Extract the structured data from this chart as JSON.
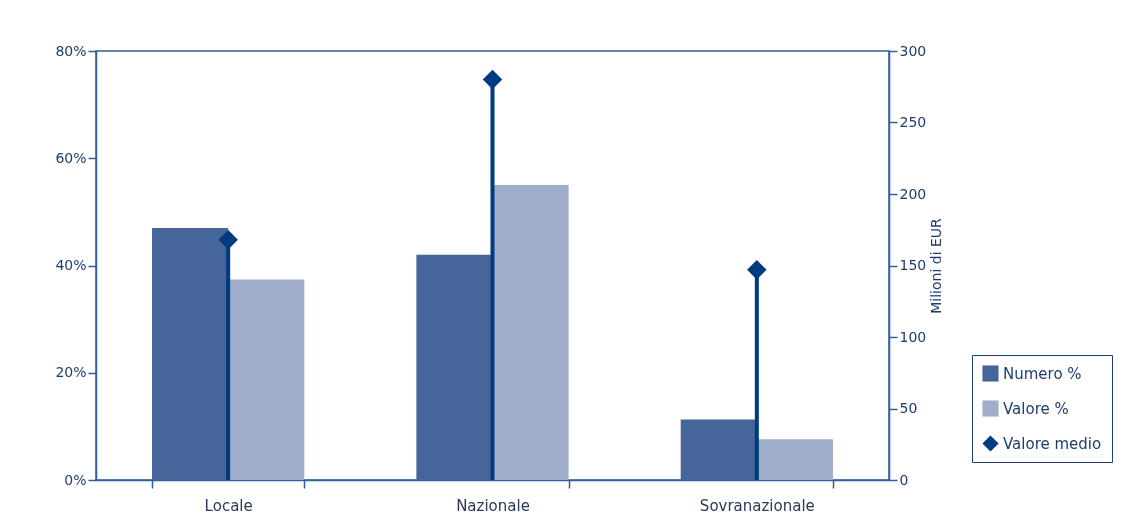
{
  "chart_data": {
    "type": "bar",
    "categories": [
      "Locale",
      "Nazionale",
      "Sovranazionale"
    ],
    "series": [
      {
        "name": "Numero %",
        "color": "#46659a",
        "values": [
          47,
          42,
          11.3
        ]
      },
      {
        "name": "Valore %",
        "color": "#a0aecb",
        "values": [
          37.4,
          55,
          7.6
        ]
      },
      {
        "name": "Valore medio",
        "type": "lollipop",
        "axis": "y2",
        "color": "#003a80",
        "marker": "diamond",
        "values": [
          168,
          280,
          147
        ]
      }
    ],
    "ylim": [
      0,
      80
    ],
    "yticks": [
      {
        "value": 0,
        "label": "0%"
      },
      {
        "value": 20,
        "label": "20%"
      },
      {
        "value": 40,
        "label": "40%"
      },
      {
        "value": 60,
        "label": "60%"
      },
      {
        "value": 80,
        "label": "80%"
      }
    ],
    "y2lim": [
      0,
      300
    ],
    "y2ticks": [
      0,
      50,
      100,
      150,
      200,
      250,
      300
    ],
    "y2label": "Milioni di EUR",
    "legend": "bottom right",
    "grid": false
  }
}
